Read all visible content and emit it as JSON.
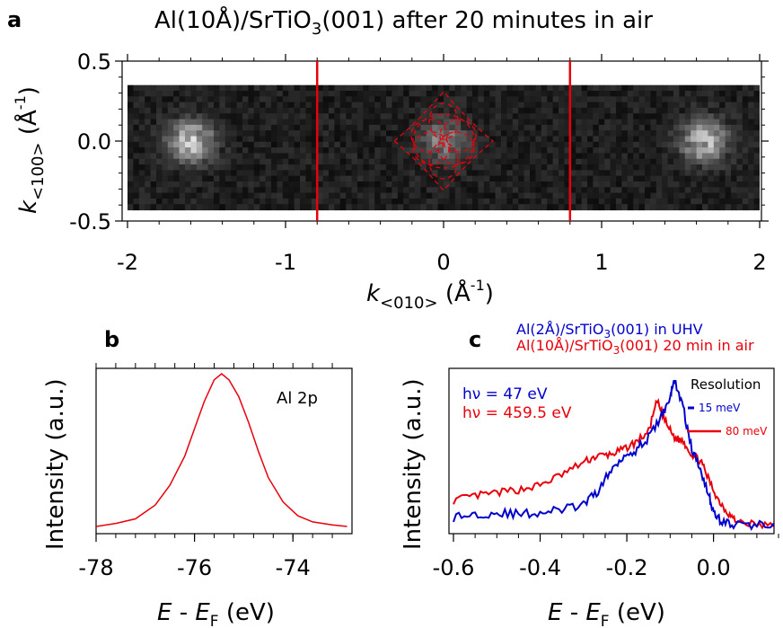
{
  "title": "Al(10Å)/SrTiO3(001) after 20 minutes in air",
  "chart_data": [
    {
      "panel": "a",
      "type": "heatmap",
      "title": "Al(10Å)/SrTiO3(001) after 20 minutes in air",
      "xlabel": "k<010> (Å^-1)",
      "ylabel": "k<100> (Å^-1)",
      "xlim": [
        -2.0,
        2.0
      ],
      "ylim": [
        -0.5,
        0.5
      ],
      "data_ylim": [
        -0.43,
        0.35
      ],
      "xticks": [
        -2,
        -1,
        0,
        1,
        2
      ],
      "yticks": [
        0.5,
        0.0,
        -0.5
      ],
      "vertical_lines": [
        -0.8,
        0.8
      ],
      "bright_spots": [
        {
          "x": -1.6,
          "y": 0.0,
          "intensity": 0.75
        },
        {
          "x": 0.0,
          "y": 0.0,
          "intensity": 0.45
        },
        {
          "x": 1.65,
          "y": 0.0,
          "intensity": 0.7
        }
      ],
      "dashed_contour_center": [
        0.0,
        0.0
      ],
      "colors": {
        "line": "#e8000b",
        "contour": "#e8000b"
      }
    },
    {
      "panel": "b",
      "type": "line",
      "xlabel": "E - EF (eV)",
      "ylabel": "Intensity (a.u.)",
      "xlim": [
        -78.0,
        -72.8
      ],
      "xticks": [
        -78,
        -76,
        -74
      ],
      "annotation": "Al 2p",
      "series": [
        {
          "name": "Al 2p",
          "color": "#e8000b",
          "x": [
            -78.0,
            -77.6,
            -77.2,
            -76.8,
            -76.5,
            -76.2,
            -76.0,
            -75.8,
            -75.6,
            -75.45,
            -75.3,
            -75.1,
            -74.9,
            -74.7,
            -74.5,
            -74.2,
            -73.9,
            -73.6,
            -73.2,
            -72.9
          ],
          "y": [
            0.0,
            0.02,
            0.05,
            0.14,
            0.27,
            0.46,
            0.64,
            0.82,
            0.96,
            1.0,
            0.96,
            0.85,
            0.68,
            0.49,
            0.32,
            0.16,
            0.07,
            0.03,
            0.01,
            0.0
          ]
        }
      ]
    },
    {
      "panel": "c",
      "type": "line",
      "xlabel": "E - EF (eV)",
      "ylabel": "Intensity (a.u.)",
      "xlim": [
        -0.6,
        0.15
      ],
      "xticks": [
        -0.6,
        -0.4,
        -0.2,
        0.0
      ],
      "legend": [
        "Al(2Å)/SrTiO3(001) in UHV",
        "Al(10Å)/SrTiO3(001) 20 min in air"
      ],
      "annotations": {
        "hv_blue": "hν = 47 eV",
        "hv_red": "hν = 459.5 eV",
        "resolution_title": "Resolution",
        "res_blue": "15 meV",
        "res_red": "80 meV"
      },
      "series": [
        {
          "name": "Al(2Å)/SrTiO3(001) in UHV",
          "color": "#0000cc",
          "x": [
            -0.6,
            -0.55,
            -0.5,
            -0.45,
            -0.4,
            -0.35,
            -0.3,
            -0.27,
            -0.24,
            -0.21,
            -0.18,
            -0.15,
            -0.12,
            -0.1,
            -0.09,
            -0.07,
            -0.05,
            -0.03,
            -0.01,
            0.0,
            0.02,
            0.05,
            0.1,
            0.15
          ],
          "y": [
            0.06,
            0.08,
            0.09,
            0.08,
            0.09,
            0.11,
            0.14,
            0.22,
            0.35,
            0.46,
            0.5,
            0.58,
            0.72,
            0.85,
            0.96,
            0.78,
            0.5,
            0.38,
            0.2,
            0.09,
            0.03,
            0.01,
            0.01,
            0.02
          ]
        },
        {
          "name": "Al(10Å)/SrTiO3(001) 20 min in air",
          "color": "#e8000b",
          "x": [
            -0.6,
            -0.55,
            -0.5,
            -0.45,
            -0.4,
            -0.35,
            -0.3,
            -0.27,
            -0.24,
            -0.21,
            -0.18,
            -0.15,
            -0.13,
            -0.11,
            -0.09,
            -0.07,
            -0.05,
            -0.03,
            -0.01,
            0.01,
            0.03,
            0.05,
            0.1,
            0.15
          ],
          "y": [
            0.17,
            0.2,
            0.22,
            0.24,
            0.27,
            0.34,
            0.42,
            0.46,
            0.47,
            0.5,
            0.55,
            0.62,
            0.82,
            0.68,
            0.58,
            0.56,
            0.47,
            0.43,
            0.3,
            0.18,
            0.1,
            0.04,
            0.01,
            0.0
          ]
        }
      ]
    }
  ]
}
